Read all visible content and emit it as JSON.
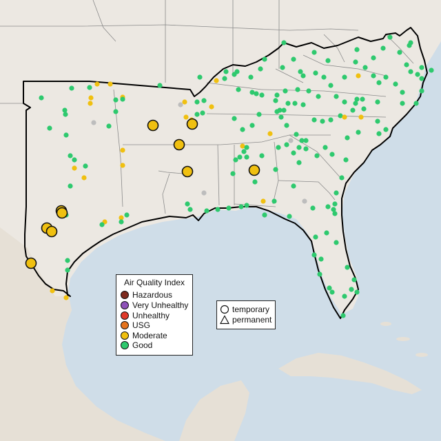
{
  "map": {
    "colors": {
      "water": "#cfdde8",
      "land": "#ece8e2",
      "mexico_land": "#e6e0d6",
      "region_outline": "#000000",
      "state_border": "#8a8a8a",
      "no_data": "#bdbdbd"
    },
    "aqi_legend": {
      "title": "Air Quality Index",
      "items": [
        {
          "label": "Hazardous",
          "color": "#7e2a1e"
        },
        {
          "label": "Very Unhealthy",
          "color": "#8e52b8"
        },
        {
          "label": "Unhealthy",
          "color": "#e03a2a"
        },
        {
          "label": "USG",
          "color": "#e5731d"
        },
        {
          "label": "Moderate",
          "color": "#f0c010"
        },
        {
          "label": "Good",
          "color": "#2ec96e"
        }
      ]
    },
    "type_legend": {
      "items": [
        {
          "label": "temporary",
          "icon": "circle-icon"
        },
        {
          "label": "permanent",
          "icon": "triangle-icon"
        }
      ]
    }
  }
}
